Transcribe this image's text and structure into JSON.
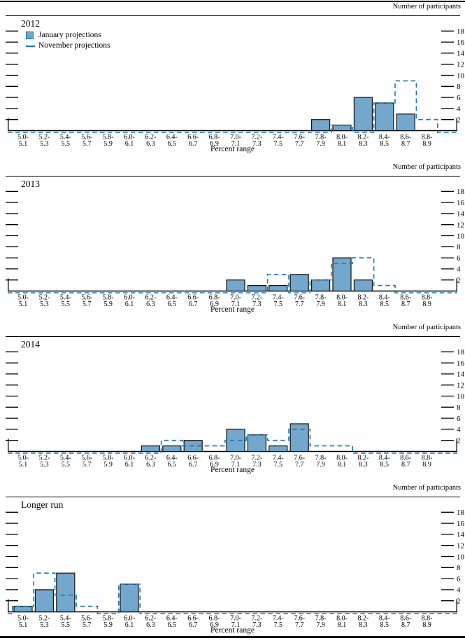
{
  "figure": {
    "right_axis_title": "Number of participants",
    "x_axis_title": "Percent range",
    "legend": {
      "january_label": "January projections",
      "november_label": "November projections"
    },
    "colors": {
      "bar_fill": "#74A7CC",
      "bar_stroke": "#121212",
      "november_dash": "#1878B0",
      "axis": "#000000"
    },
    "y_ticks": [
      2,
      4,
      6,
      8,
      10,
      12,
      14,
      16,
      18
    ]
  },
  "chart_data": [
    {
      "type": "bar",
      "title": "2012",
      "xlabel": "Percent range",
      "ylabel": "Number of participants",
      "ylim": [
        0,
        19
      ],
      "grid": false,
      "legend_position": "top-left",
      "categories": [
        "5.0-5.1",
        "5.2-5.3",
        "5.4-5.5",
        "5.6-5.7",
        "5.8-5.9",
        "6.0-6.1",
        "6.2-6.3",
        "6.4-6.5",
        "6.6-6.7",
        "6.8-6.9",
        "7.0-7.1",
        "7.2-7.3",
        "7.4-7.5",
        "7.6-7.7",
        "7.8-7.9",
        "8.0-8.1",
        "8.2-8.3",
        "8.4-8.5",
        "8.6-8.7",
        "8.8-8.9"
      ],
      "series": [
        {
          "name": "January projections",
          "style": "filled-bar",
          "values": [
            0,
            0,
            0,
            0,
            0,
            0,
            0,
            0,
            0,
            0,
            0,
            0,
            0,
            0,
            2,
            1,
            6,
            5,
            3,
            0
          ]
        },
        {
          "name": "November projections",
          "style": "dashed-outline",
          "values": [
            0,
            0,
            0,
            0,
            0,
            0,
            0,
            0,
            0,
            0,
            0,
            0,
            0,
            0,
            0,
            1,
            0,
            5,
            9,
            2
          ]
        }
      ]
    },
    {
      "type": "bar",
      "title": "2013",
      "xlabel": "Percent range",
      "ylabel": "Number of participants",
      "ylim": [
        0,
        19
      ],
      "grid": false,
      "categories": [
        "5.0-5.1",
        "5.2-5.3",
        "5.4-5.5",
        "5.6-5.7",
        "5.8-5.9",
        "6.0-6.1",
        "6.2-6.3",
        "6.4-6.5",
        "6.6-6.7",
        "6.8-6.9",
        "7.0-7.1",
        "7.2-7.3",
        "7.4-7.5",
        "7.6-7.7",
        "7.8-7.9",
        "8.0-8.1",
        "8.2-8.3",
        "8.4-8.5",
        "8.6-8.7",
        "8.8-8.9"
      ],
      "series": [
        {
          "name": "January projections",
          "style": "filled-bar",
          "values": [
            0,
            0,
            0,
            0,
            0,
            0,
            0,
            0,
            0,
            0,
            2,
            1,
            1,
            3,
            2,
            6,
            2,
            0,
            0,
            0
          ]
        },
        {
          "name": "November projections",
          "style": "dashed-outline",
          "values": [
            0,
            0,
            0,
            0,
            0,
            0,
            0,
            0,
            0,
            0,
            0,
            0,
            3,
            0,
            2,
            5,
            6,
            1,
            0,
            0
          ]
        }
      ]
    },
    {
      "type": "bar",
      "title": "2014",
      "xlabel": "Percent range",
      "ylabel": "Number of participants",
      "ylim": [
        0,
        19
      ],
      "grid": false,
      "categories": [
        "5.0-5.1",
        "5.2-5.3",
        "5.4-5.5",
        "5.6-5.7",
        "5.8-5.9",
        "6.0-6.1",
        "6.2-6.3",
        "6.4-6.5",
        "6.6-6.7",
        "6.8-6.9",
        "7.0-7.1",
        "7.2-7.3",
        "7.4-7.5",
        "7.6-7.7",
        "7.8-7.9",
        "8.0-8.1",
        "8.2-8.3",
        "8.4-8.5",
        "8.6-8.7",
        "8.8-8.9"
      ],
      "series": [
        {
          "name": "January projections",
          "style": "filled-bar",
          "values": [
            0,
            0,
            0,
            0,
            0,
            0,
            1,
            1,
            2,
            0,
            4,
            3,
            1,
            5,
            0,
            0,
            0,
            0,
            0,
            0
          ]
        },
        {
          "name": "November projections",
          "style": "dashed-outline",
          "values": [
            0,
            0,
            0,
            0,
            0,
            0,
            0,
            2,
            1,
            1,
            2,
            3,
            2,
            4,
            1,
            1,
            0,
            0,
            0,
            0
          ]
        }
      ]
    },
    {
      "type": "bar",
      "title": "Longer run",
      "xlabel": "Percent range",
      "ylabel": "Number of participants",
      "ylim": [
        0,
        19
      ],
      "grid": false,
      "categories": [
        "5.0-5.1",
        "5.2-5.3",
        "5.4-5.5",
        "5.6-5.7",
        "5.8-5.9",
        "6.0-6.1",
        "6.2-6.3",
        "6.4-6.5",
        "6.6-6.7",
        "6.8-6.9",
        "7.0-7.1",
        "7.2-7.3",
        "7.4-7.5",
        "7.6-7.7",
        "7.8-7.9",
        "8.0-8.1",
        "8.2-8.3",
        "8.4-8.5",
        "8.6-8.7",
        "8.8-8.9"
      ],
      "series": [
        {
          "name": "January projections",
          "style": "filled-bar",
          "values": [
            1,
            4,
            7,
            0,
            0,
            5,
            0,
            0,
            0,
            0,
            0,
            0,
            0,
            0,
            0,
            0,
            0,
            0,
            0,
            0
          ]
        },
        {
          "name": "November projections",
          "style": "dashed-outline",
          "values": [
            1,
            7,
            3,
            1,
            0,
            5,
            0,
            0,
            0,
            0,
            0,
            0,
            0,
            0,
            0,
            0,
            0,
            0,
            0,
            0
          ]
        }
      ]
    }
  ]
}
